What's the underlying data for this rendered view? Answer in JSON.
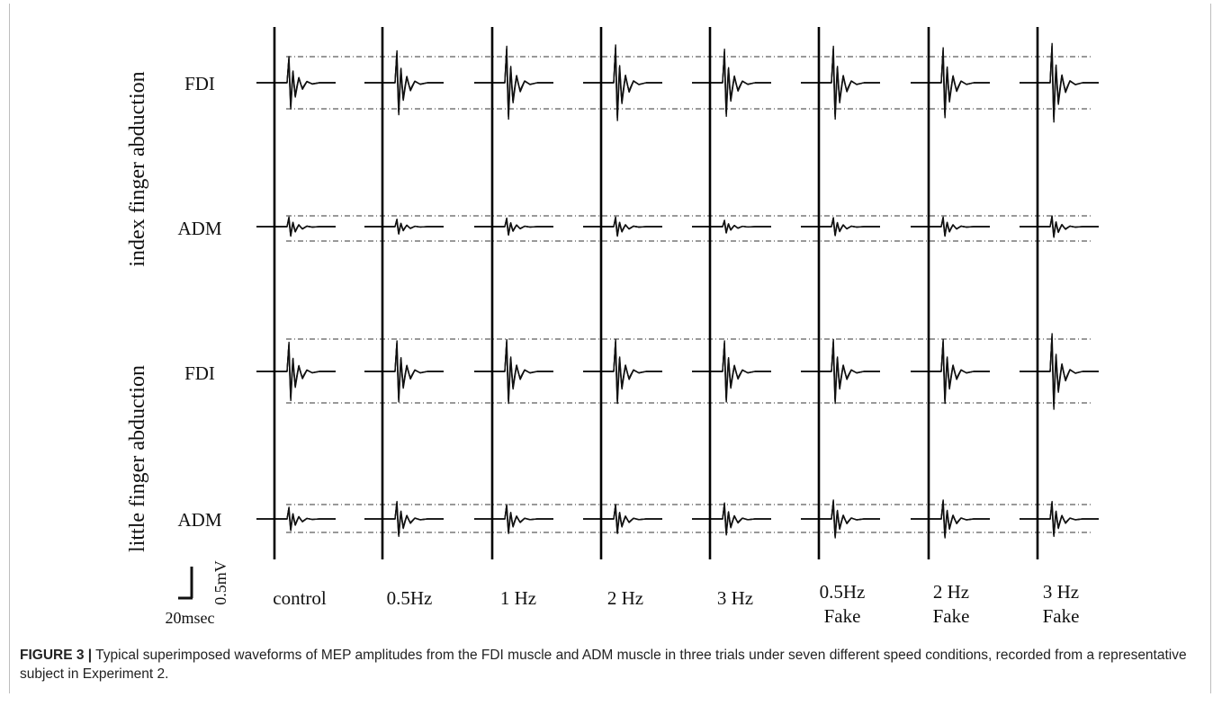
{
  "figure": {
    "group_labels": [
      "index finger  abduction",
      "little finger  abduction"
    ],
    "row_labels": [
      "FDI",
      "ADM",
      "FDI",
      "ADM"
    ],
    "conditions": [
      {
        "line1": "control",
        "line2": ""
      },
      {
        "line1": "0.5Hz",
        "line2": ""
      },
      {
        "line1": "1 Hz",
        "line2": ""
      },
      {
        "line1": "2 Hz",
        "line2": ""
      },
      {
        "line1": "3 Hz",
        "line2": ""
      },
      {
        "line1": "0.5Hz",
        "line2": "Fake"
      },
      {
        "line1": "2 Hz",
        "line2": "Fake"
      },
      {
        "line1": "3 Hz",
        "line2": "Fake"
      }
    ],
    "scale_bar": {
      "time": "20msec",
      "amplitude": "0.5mV"
    }
  },
  "caption": {
    "label": "FIGURE 3 |",
    "text": " Typical superimposed waveforms of MEP amplitudes from the FDI muscle and ADM muscle in three trials under seven different speed conditions, recorded from a representative subject in Experiment 2."
  }
}
